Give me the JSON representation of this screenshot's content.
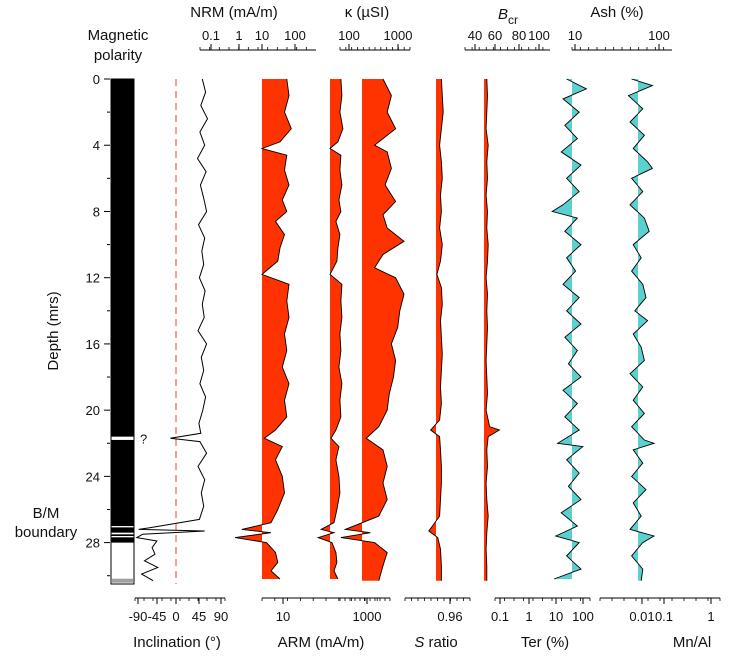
{
  "chart_data": {
    "type": "line",
    "y_axis": {
      "label": "Depth (mrs)",
      "range": [
        0,
        30.5
      ],
      "ticks": [
        0,
        4,
        8,
        12,
        16,
        20,
        24,
        28
      ],
      "inverted": true
    },
    "polarity_column": {
      "title_line1": "Magnetic",
      "title_line2": "polarity",
      "normal_intervals": [
        [
          0,
          21.6
        ],
        [
          21.8,
          27.0
        ],
        [
          27.08,
          27.4
        ],
        [
          27.5,
          27.6
        ],
        [
          27.68,
          28.0
        ]
      ],
      "question_mark": "?",
      "question_depth": 21.7,
      "gray_band_depth": 30.3,
      "boundary_label_line1": "B/M",
      "boundary_label_line2": "boundary"
    },
    "panels": [
      {
        "id": "inclination",
        "bottom_label": "Inclination (°)",
        "bottom_ticks": [
          "-90",
          "-45",
          "0",
          "45",
          "90"
        ],
        "fill": "none",
        "baseline_value": "0",
        "profile": [
          [
            0,
            55
          ],
          [
            0.8,
            62
          ],
          [
            1.6,
            52
          ],
          [
            2.4,
            66
          ],
          [
            3.2,
            50
          ],
          [
            4.0,
            60
          ],
          [
            4.8,
            45
          ],
          [
            5.6,
            63
          ],
          [
            6.4,
            51
          ],
          [
            7.2,
            58
          ],
          [
            8.0,
            64
          ],
          [
            8.8,
            47
          ],
          [
            9.6,
            60
          ],
          [
            10.4,
            54
          ],
          [
            11.2,
            58
          ],
          [
            12.0,
            49
          ],
          [
            12.8,
            61
          ],
          [
            13.6,
            55
          ],
          [
            14.4,
            59
          ],
          [
            15.2,
            46
          ],
          [
            16.0,
            64
          ],
          [
            16.8,
            53
          ],
          [
            17.6,
            58
          ],
          [
            18.4,
            50
          ],
          [
            19.2,
            62
          ],
          [
            20.0,
            56
          ],
          [
            20.8,
            48
          ],
          [
            21.4,
            52
          ],
          [
            21.7,
            -12
          ],
          [
            21.9,
            50
          ],
          [
            22.6,
            64
          ],
          [
            23.4,
            46
          ],
          [
            24.2,
            60
          ],
          [
            25.0,
            53
          ],
          [
            25.8,
            58
          ],
          [
            26.6,
            49
          ],
          [
            27.1,
            -55
          ],
          [
            27.2,
            -78
          ],
          [
            27.3,
            60
          ],
          [
            27.5,
            -70
          ],
          [
            27.7,
            -82
          ],
          [
            27.9,
            -40
          ],
          [
            28.3,
            -50
          ],
          [
            28.7,
            -44
          ],
          [
            29.1,
            -66
          ],
          [
            29.5,
            -38
          ],
          [
            29.9,
            -72
          ],
          [
            30.3,
            -48
          ]
        ]
      },
      {
        "id": "nrm",
        "top_label": "NRM (mA/m)",
        "top_ticks": [
          "0.1",
          "1",
          "10",
          "100"
        ],
        "bottom_label": "ARM (mA/m)",
        "bottom_ticks": [
          "10"
        ],
        "fill": "#ff3300",
        "profile": [
          [
            0,
            0.55
          ],
          [
            1.0,
            0.6
          ],
          [
            2.0,
            0.5
          ],
          [
            3.0,
            0.65
          ],
          [
            3.8,
            0.4
          ],
          [
            4.2,
            0.0
          ],
          [
            4.6,
            0.55
          ],
          [
            5.5,
            0.5
          ],
          [
            6.4,
            0.6
          ],
          [
            7.3,
            0.45
          ],
          [
            8.0,
            0.55
          ],
          [
            8.6,
            0.3
          ],
          [
            9.4,
            0.5
          ],
          [
            10.2,
            0.4
          ],
          [
            11.0,
            0.35
          ],
          [
            11.8,
            0.0
          ],
          [
            12.4,
            0.6
          ],
          [
            13.4,
            0.55
          ],
          [
            14.4,
            0.6
          ],
          [
            15.4,
            0.5
          ],
          [
            16.4,
            0.55
          ],
          [
            17.4,
            0.45
          ],
          [
            18.4,
            0.6
          ],
          [
            19.4,
            0.5
          ],
          [
            20.4,
            0.55
          ],
          [
            21.2,
            0.3
          ],
          [
            21.7,
            0.05
          ],
          [
            22.2,
            0.45
          ],
          [
            23.0,
            0.3
          ],
          [
            24.0,
            0.45
          ],
          [
            25.0,
            0.5
          ],
          [
            26.0,
            0.35
          ],
          [
            26.8,
            0.2
          ],
          [
            27.2,
            -0.45
          ],
          [
            27.4,
            0.2
          ],
          [
            27.7,
            -0.6
          ],
          [
            28.0,
            0.1
          ],
          [
            28.6,
            0.3
          ],
          [
            29.2,
            0.35
          ],
          [
            29.7,
            0.2
          ],
          [
            30.2,
            0.4
          ]
        ]
      },
      {
        "id": "kappa",
        "top_label": "κ (µSI)",
        "top_ticks": [
          "100",
          "1000"
        ],
        "bottom_label": "",
        "bottom_ticks": [
          "1000"
        ],
        "fill": "#ff3300",
        "profile": [
          [
            0,
            0.5
          ],
          [
            1.0,
            0.7
          ],
          [
            2.0,
            0.6
          ],
          [
            3.0,
            0.8
          ],
          [
            4.0,
            0.3
          ],
          [
            4.4,
            0.6
          ],
          [
            5.4,
            0.7
          ],
          [
            6.4,
            0.55
          ],
          [
            7.4,
            0.8
          ],
          [
            8.2,
            0.5
          ],
          [
            9.0,
            0.6
          ],
          [
            9.8,
            1.0
          ],
          [
            10.6,
            0.5
          ],
          [
            11.4,
            0.3
          ],
          [
            12.0,
            0.8
          ],
          [
            13.0,
            1.0
          ],
          [
            14.0,
            0.9
          ],
          [
            15.0,
            0.85
          ],
          [
            16.0,
            0.7
          ],
          [
            17.0,
            0.8
          ],
          [
            18.0,
            0.75
          ],
          [
            19.0,
            0.65
          ],
          [
            20.0,
            0.6
          ],
          [
            21.0,
            0.4
          ],
          [
            21.7,
            0.1
          ],
          [
            22.4,
            0.5
          ],
          [
            23.4,
            0.6
          ],
          [
            24.4,
            0.5
          ],
          [
            25.4,
            0.6
          ],
          [
            26.4,
            0.4
          ],
          [
            27.2,
            -0.4
          ],
          [
            27.4,
            0.2
          ],
          [
            27.7,
            -0.5
          ],
          [
            28.0,
            0.3
          ],
          [
            28.6,
            0.6
          ],
          [
            29.4,
            0.5
          ],
          [
            30.3,
            0.4
          ]
        ]
      },
      {
        "id": "sratio",
        "top_label": "Bcr",
        "top_ticks": [
          "40",
          "60",
          "80",
          "100"
        ],
        "bottom_label": "S ratio",
        "bottom_ticks": [
          "0.96"
        ],
        "fill": "#ff3300",
        "profile": [
          [
            0,
            0.3
          ],
          [
            1.0,
            0.35
          ],
          [
            2.0,
            0.4
          ],
          [
            3.0,
            0.3
          ],
          [
            4.0,
            0.2
          ],
          [
            5.0,
            0.3
          ],
          [
            6.0,
            0.35
          ],
          [
            7.0,
            0.25
          ],
          [
            8.0,
            0.3
          ],
          [
            9.0,
            0.2
          ],
          [
            10.0,
            0.35
          ],
          [
            11.0,
            0.25
          ],
          [
            11.8,
            0.05
          ],
          [
            12.6,
            0.3
          ],
          [
            13.6,
            0.35
          ],
          [
            14.6,
            0.25
          ],
          [
            15.6,
            0.3
          ],
          [
            16.6,
            0.35
          ],
          [
            17.6,
            0.3
          ],
          [
            18.6,
            0.25
          ],
          [
            19.6,
            0.3
          ],
          [
            20.6,
            0.2
          ],
          [
            21.2,
            -0.3
          ],
          [
            21.6,
            0.2
          ],
          [
            22.4,
            0.25
          ],
          [
            23.4,
            0.3
          ],
          [
            24.4,
            0.3
          ],
          [
            25.4,
            0.25
          ],
          [
            26.4,
            0.2
          ],
          [
            27.3,
            -0.4
          ],
          [
            27.7,
            0.1
          ],
          [
            28.4,
            0.25
          ],
          [
            29.4,
            0.3
          ],
          [
            30.3,
            0.3
          ]
        ]
      },
      {
        "id": "bcr",
        "top_label": "",
        "top_ticks": [],
        "bottom_label": "",
        "bottom_ticks": [],
        "fill": "#ff3300",
        "profile": [
          [
            0,
            0.2
          ],
          [
            1.0,
            0.25
          ],
          [
            2.0,
            0.2
          ],
          [
            3.0,
            0.15
          ],
          [
            4.0,
            0.3
          ],
          [
            5.0,
            0.2
          ],
          [
            6.0,
            0.25
          ],
          [
            7.0,
            0.15
          ],
          [
            8.0,
            0.25
          ],
          [
            9.0,
            0.2
          ],
          [
            10.0,
            0.3
          ],
          [
            11.0,
            0.25
          ],
          [
            12.0,
            0.15
          ],
          [
            13.0,
            0.25
          ],
          [
            14.0,
            0.2
          ],
          [
            15.0,
            0.25
          ],
          [
            16.0,
            0.2
          ],
          [
            17.0,
            0.15
          ],
          [
            18.0,
            0.2
          ],
          [
            19.0,
            0.25
          ],
          [
            20.0,
            0.15
          ],
          [
            21.0,
            0.4
          ],
          [
            21.2,
            1.1
          ],
          [
            21.6,
            0.3
          ],
          [
            22.4,
            0.2
          ],
          [
            23.4,
            0.25
          ],
          [
            24.4,
            0.15
          ],
          [
            25.4,
            0.2
          ],
          [
            26.4,
            0.3
          ],
          [
            27.4,
            0.2
          ],
          [
            28.4,
            0.15
          ],
          [
            29.4,
            0.2
          ],
          [
            30.3,
            0.2
          ]
        ]
      },
      {
        "id": "ter",
        "top_label": "Ash (%)",
        "top_ticks": [
          "10",
          "100"
        ],
        "bottom_label": "Ter (%)",
        "bottom_ticks": [
          "0.1",
          "1",
          "10",
          "100"
        ],
        "fill": "#5ccfcf",
        "profile": [
          [
            0,
            -0.3
          ],
          [
            0.6,
            0.8
          ],
          [
            1.2,
            -0.5
          ],
          [
            2.0,
            0.4
          ],
          [
            2.8,
            -0.4
          ],
          [
            3.6,
            0.3
          ],
          [
            4.4,
            -0.6
          ],
          [
            5.2,
            0.5
          ],
          [
            6.0,
            -0.3
          ],
          [
            6.8,
            0.4
          ],
          [
            7.6,
            -0.5
          ],
          [
            8.0,
            -1.1
          ],
          [
            8.4,
            0.3
          ],
          [
            9.2,
            -0.4
          ],
          [
            10.0,
            0.5
          ],
          [
            10.8,
            -0.3
          ],
          [
            11.6,
            0.2
          ],
          [
            12.4,
            -0.5
          ],
          [
            13.2,
            0.4
          ],
          [
            14.0,
            -0.3
          ],
          [
            14.8,
            0.5
          ],
          [
            15.6,
            -0.4
          ],
          [
            16.4,
            0.3
          ],
          [
            17.2,
            -0.2
          ],
          [
            18.0,
            0.5
          ],
          [
            18.8,
            -0.5
          ],
          [
            19.6,
            0.3
          ],
          [
            20.4,
            -0.4
          ],
          [
            21.2,
            0.4
          ],
          [
            22.0,
            -0.8
          ],
          [
            22.2,
            0.6
          ],
          [
            23.0,
            -0.3
          ],
          [
            23.8,
            0.4
          ],
          [
            24.6,
            -0.2
          ],
          [
            25.4,
            0.5
          ],
          [
            26.2,
            -0.6
          ],
          [
            27.0,
            0.3
          ],
          [
            27.6,
            -0.9
          ],
          [
            28.0,
            0.4
          ],
          [
            28.8,
            -0.3
          ],
          [
            29.6,
            0.5
          ],
          [
            30.2,
            -1.0
          ]
        ]
      },
      {
        "id": "mnal",
        "top_label": "",
        "top_ticks": [],
        "bottom_label": "Mn/Al",
        "bottom_ticks": [
          "0.01",
          "0.1",
          "1"
        ],
        "fill": "#5ccfcf",
        "profile": [
          [
            0,
            -0.4
          ],
          [
            0.4,
            0.9
          ],
          [
            1.0,
            -0.6
          ],
          [
            1.8,
            0.3
          ],
          [
            2.6,
            -0.5
          ],
          [
            3.4,
            0.4
          ],
          [
            4.2,
            -0.3
          ],
          [
            5.0,
            0.6
          ],
          [
            5.4,
            0.9
          ],
          [
            6.0,
            -0.4
          ],
          [
            6.8,
            0.3
          ],
          [
            7.6,
            -0.5
          ],
          [
            8.4,
            0.4
          ],
          [
            9.2,
            0.7
          ],
          [
            10.0,
            -0.3
          ],
          [
            10.8,
            0.2
          ],
          [
            11.6,
            -0.4
          ],
          [
            12.4,
            0.3
          ],
          [
            13.2,
            0.5
          ],
          [
            14.0,
            -0.2
          ],
          [
            14.6,
            0.6
          ],
          [
            15.4,
            -0.3
          ],
          [
            16.2,
            0.2
          ],
          [
            17.0,
            0.4
          ],
          [
            17.8,
            -0.5
          ],
          [
            18.6,
            0.3
          ],
          [
            19.4,
            -0.3
          ],
          [
            20.2,
            0.4
          ],
          [
            21.0,
            -0.4
          ],
          [
            21.8,
            0.4
          ],
          [
            22.0,
            1.0
          ],
          [
            22.4,
            -0.3
          ],
          [
            23.2,
            0.3
          ],
          [
            24.0,
            -0.4
          ],
          [
            24.8,
            0.5
          ],
          [
            25.6,
            -0.3
          ],
          [
            26.4,
            0.2
          ],
          [
            27.2,
            -0.5
          ],
          [
            27.6,
            1.0
          ],
          [
            28.0,
            0.3
          ],
          [
            28.8,
            -0.4
          ],
          [
            29.6,
            0.3
          ],
          [
            30.3,
            0.2
          ]
        ]
      }
    ]
  }
}
